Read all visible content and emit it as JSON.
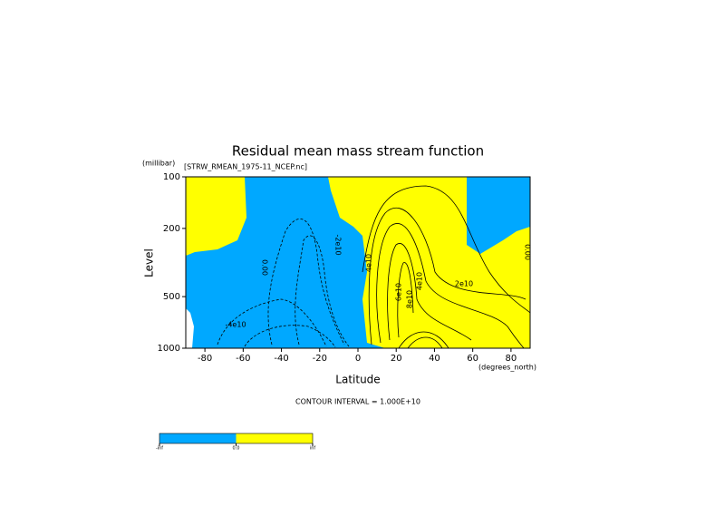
{
  "chart_data": {
    "type": "contour",
    "title": "Residual mean mass stream function",
    "subtitle": "[STRW_RMEAN_1975-11_NCEP.nc]",
    "y_unit": "(millibar)",
    "y_label": "Level",
    "x_label": "Latitude",
    "x_unit": "(degrees_north)",
    "note": "CONTOUR INTERVAL = 1.000E+10",
    "xlim": [
      -90,
      90
    ],
    "xticks": [
      -80,
      -60,
      -40,
      -20,
      0,
      20,
      40,
      60,
      80
    ],
    "ylim": [
      1000,
      100
    ],
    "yticks": [
      100,
      200,
      500,
      1000
    ],
    "log_y": true,
    "colors": [
      "#00a8ff",
      "#ffff00"
    ],
    "contour_labels": [
      "0.00",
      "-2e10",
      "-4e10",
      "4e10",
      "6e10",
      "8e10",
      "4e10",
      "2e10",
      "0.00"
    ],
    "colorbar_labels": [
      "-inf",
      "0.0",
      "inf"
    ]
  }
}
